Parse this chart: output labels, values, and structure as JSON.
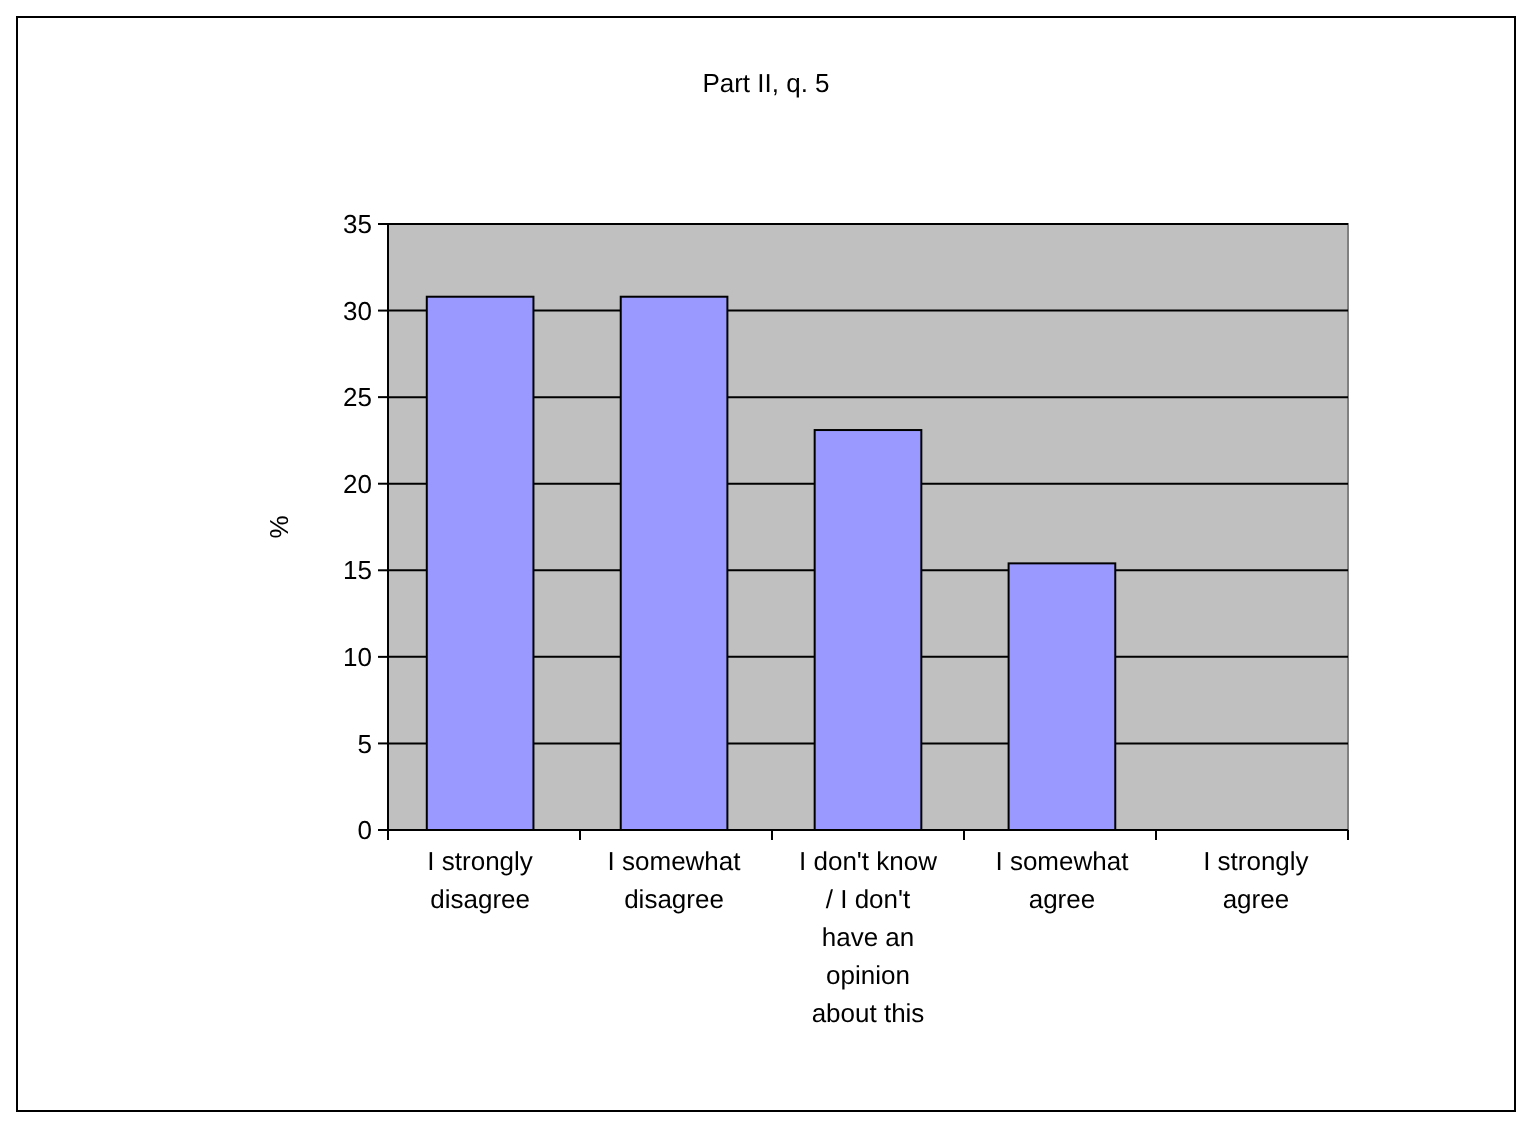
{
  "chart_data": {
    "type": "bar",
    "title": "Part II, q. 5",
    "ylabel": "%",
    "categories": [
      "I strongly disagree",
      "I somewhat disagree",
      "I don't know / I don't have an opinion about this",
      "I somewhat agree",
      "I strongly agree"
    ],
    "values": [
      30.8,
      30.8,
      23.1,
      15.4,
      0
    ],
    "color": "#9999ff",
    "ylim": [
      0,
      35
    ],
    "yticks": [
      0,
      5,
      10,
      15,
      20,
      25,
      30,
      35
    ],
    "grid": "y"
  }
}
